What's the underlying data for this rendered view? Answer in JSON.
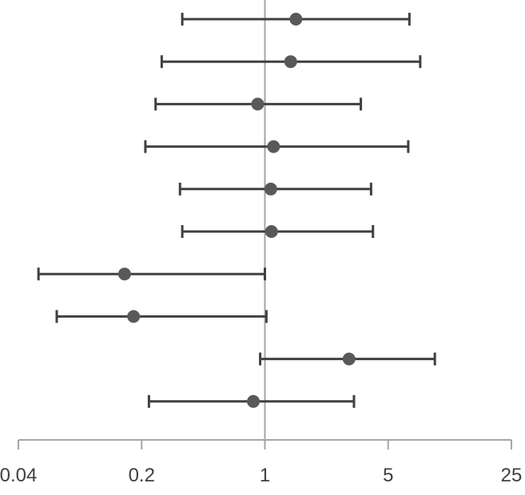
{
  "chart_data": {
    "type": "forest",
    "title": "",
    "xlabel": "",
    "ylabel": "",
    "x_scale": "log",
    "xlim": [
      0.04,
      25
    ],
    "xticks": [
      0.04,
      0.2,
      1,
      5,
      25
    ],
    "tick_labels": [
      "0.04",
      "0.2",
      "1",
      "5",
      "25"
    ],
    "reference_line": 1,
    "grid": false,
    "legend": "none",
    "colors": {
      "marker": "#595959",
      "whisker": "#404040",
      "reference_line": "#a6a6a6",
      "axis": "#a6a6a6",
      "tick_label": "#404040"
    },
    "points": [
      {
        "estimate": 1.5,
        "lower": 0.34,
        "upper": 6.6
      },
      {
        "estimate": 1.4,
        "lower": 0.26,
        "upper": 7.6
      },
      {
        "estimate": 0.91,
        "lower": 0.24,
        "upper": 3.5
      },
      {
        "estimate": 1.12,
        "lower": 0.21,
        "upper": 6.5
      },
      {
        "estimate": 1.08,
        "lower": 0.33,
        "upper": 4.0
      },
      {
        "estimate": 1.09,
        "lower": 0.34,
        "upper": 4.1
      },
      {
        "estimate": 0.16,
        "lower": 0.052,
        "upper": 1.0
      },
      {
        "estimate": 0.18,
        "lower": 0.066,
        "upper": 1.02
      },
      {
        "estimate": 3.0,
        "lower": 0.94,
        "upper": 9.2
      },
      {
        "estimate": 0.86,
        "lower": 0.22,
        "upper": 3.2
      }
    ]
  }
}
